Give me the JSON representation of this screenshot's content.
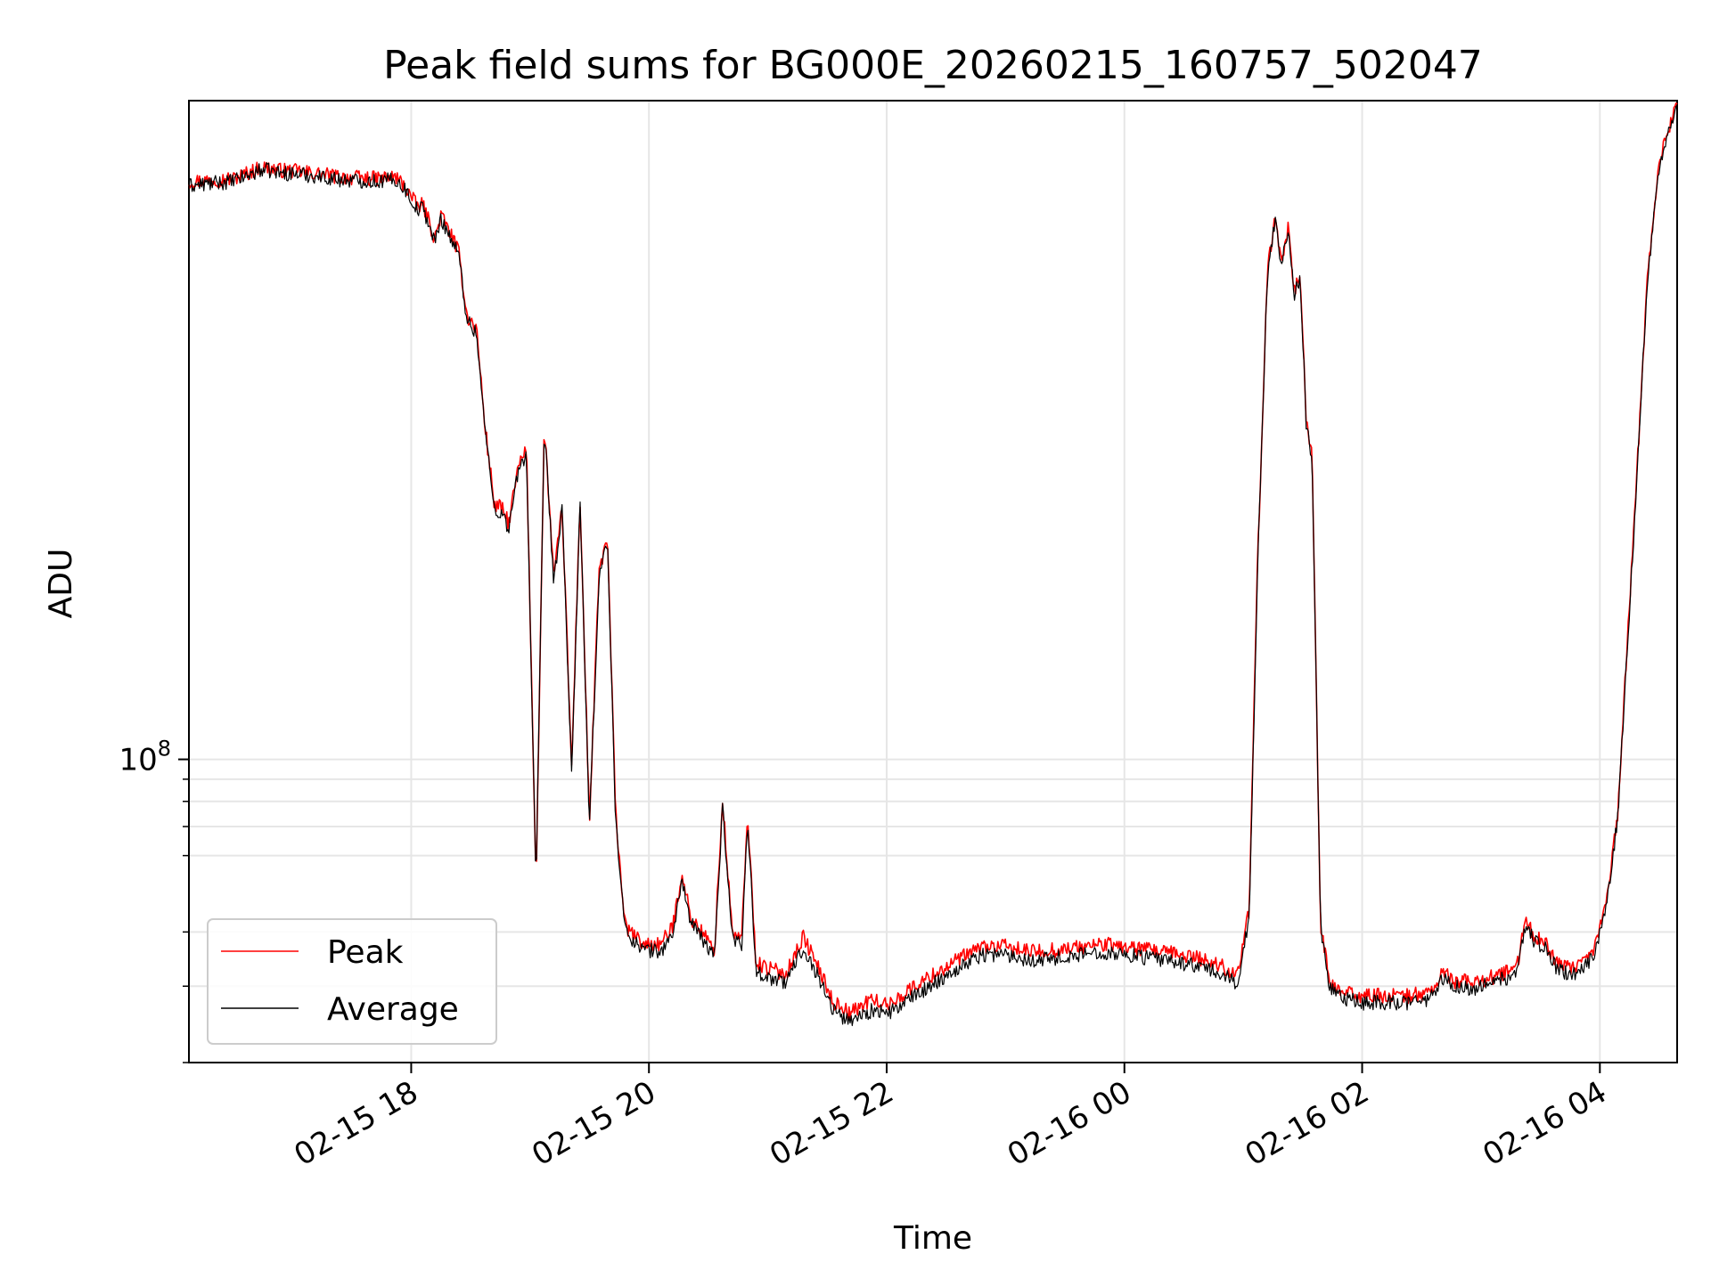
{
  "chart_data": {
    "type": "line",
    "title": "Peak field sums for BG000E_20260215_160757_502047",
    "xlabel": "Time",
    "ylabel": "ADU",
    "yscale": "log",
    "ylim": [
      20000000,
      3300000000
    ],
    "xlim_hours": [
      16.13,
      28.65
    ],
    "grid": true,
    "legend_location": "lower left",
    "x_ticks": [
      {
        "label": "02-15 18",
        "hour": 18
      },
      {
        "label": "02-15 20",
        "hour": 20
      },
      {
        "label": "02-15 22",
        "hour": 22
      },
      {
        "label": "02-16 00",
        "hour": 24
      },
      {
        "label": "02-16 02",
        "hour": 26
      },
      {
        "label": "02-16 04",
        "hour": 28
      }
    ],
    "y_major_ticks": [
      {
        "base": "10",
        "exp": "8",
        "value": 100000000
      }
    ],
    "y_minor_ticks": [
      20000000,
      30000000,
      40000000,
      60000000,
      70000000,
      80000000,
      90000000
    ],
    "series": [
      {
        "name": "Peak",
        "color": "#ff0000",
        "x_hours": [
          16.13,
          16.5,
          16.75,
          16.9,
          17.1,
          17.4,
          17.7,
          17.87,
          17.95,
          18.05,
          18.1,
          18.2,
          18.25,
          18.33,
          18.4,
          18.47,
          18.55,
          18.62,
          18.7,
          18.76,
          18.82,
          18.9,
          18.97,
          19.05,
          19.12,
          19.2,
          19.27,
          19.35,
          19.42,
          19.5,
          19.58,
          19.65,
          19.72,
          19.8,
          19.95,
          20.1,
          20.2,
          20.28,
          20.35,
          20.45,
          20.55,
          20.62,
          20.7,
          20.78,
          20.83,
          20.9,
          21.0,
          21.15,
          21.3,
          21.45,
          21.55,
          21.62,
          21.68,
          21.75,
          21.82,
          21.9,
          22.0,
          22.2,
          22.4,
          22.6,
          22.8,
          23.0,
          23.2,
          23.5,
          23.8,
          24.0,
          24.3,
          24.6,
          24.8,
          24.95,
          25.05,
          25.12,
          25.2,
          25.27,
          25.32,
          25.38,
          25.43,
          25.48,
          25.53,
          25.58,
          25.65,
          25.72,
          25.78,
          25.85,
          26.0,
          26.2,
          26.4,
          26.55,
          26.62,
          26.67,
          26.72,
          26.77,
          26.82,
          26.9,
          27.1,
          27.3,
          27.38,
          27.45,
          27.55,
          27.65,
          27.75,
          27.85,
          27.95,
          28.05,
          28.15,
          28.3,
          28.4,
          28.5,
          28.65
        ],
        "values": [
          2150000000,
          2180000000,
          2320000000,
          2280000000,
          2260000000,
          2200000000,
          2180000000,
          2200000000,
          2090000000,
          1880000000,
          1900000000,
          1580000000,
          1800000000,
          1630000000,
          1470000000,
          1050000000,
          980000000,
          590000000,
          385000000,
          380000000,
          350000000,
          470000000,
          520000000,
          52000000,
          590000000,
          260000000,
          380000000,
          95000000,
          400000000,
          72000000,
          270000000,
          325000000,
          75000000,
          41000000,
          37500000,
          37500000,
          41000000,
          55000000,
          43000000,
          40000000,
          36000000,
          80000000,
          40000000,
          38500000,
          75000000,
          34000000,
          33000000,
          32000000,
          39000000,
          32000000,
          27500000,
          27000000,
          26000000,
          26500000,
          27500000,
          28000000,
          27000000,
          29500000,
          32000000,
          34500000,
          37000000,
          37000000,
          36000000,
          36500000,
          37500000,
          37000000,
          36000000,
          35000000,
          33500000,
          32000000,
          45000000,
          280000000,
          1300000000,
          1800000000,
          1400000000,
          1700000000,
          1200000000,
          1300000000,
          600000000,
          500000000,
          42000000,
          31000000,
          29500000,
          29000000,
          28500000,
          28500000,
          28500000,
          29000000,
          30000000,
          32000000,
          32000000,
          30500000,
          31000000,
          30500000,
          31500000,
          33000000,
          43000000,
          39000000,
          37500000,
          33500000,
          33000000,
          33500000,
          36500000,
          46000000,
          75000000,
          400000000,
          1300000000,
          2400000000,
          3300000000
        ]
      },
      {
        "name": "Average",
        "color": "#000000",
        "x_hours": [
          16.13,
          16.5,
          16.75,
          16.9,
          17.1,
          17.4,
          17.7,
          17.87,
          17.95,
          18.05,
          18.1,
          18.2,
          18.25,
          18.33,
          18.4,
          18.47,
          18.55,
          18.62,
          18.7,
          18.76,
          18.82,
          18.9,
          18.97,
          19.05,
          19.12,
          19.2,
          19.27,
          19.35,
          19.42,
          19.5,
          19.58,
          19.65,
          19.72,
          19.8,
          19.95,
          20.1,
          20.2,
          20.28,
          20.35,
          20.45,
          20.55,
          20.62,
          20.7,
          20.78,
          20.83,
          20.9,
          21.0,
          21.15,
          21.3,
          21.45,
          21.55,
          21.62,
          21.68,
          21.75,
          21.82,
          21.9,
          22.0,
          22.2,
          22.4,
          22.6,
          22.8,
          23.0,
          23.2,
          23.5,
          23.8,
          24.0,
          24.3,
          24.6,
          24.8,
          24.95,
          25.05,
          25.12,
          25.2,
          25.27,
          25.32,
          25.38,
          25.43,
          25.48,
          25.53,
          25.58,
          25.65,
          25.72,
          25.78,
          25.85,
          26.0,
          26.2,
          26.4,
          26.55,
          26.62,
          26.67,
          26.72,
          26.77,
          26.82,
          26.9,
          27.1,
          27.3,
          27.38,
          27.45,
          27.55,
          27.65,
          27.75,
          27.85,
          27.95,
          28.05,
          28.15,
          28.3,
          28.4,
          28.5,
          28.65
        ],
        "values": [
          2100000000,
          2150000000,
          2290000000,
          2250000000,
          2230000000,
          2170000000,
          2150000000,
          2170000000,
          2060000000,
          1850000000,
          1870000000,
          1550000000,
          1770000000,
          1600000000,
          1450000000,
          1030000000,
          960000000,
          580000000,
          375000000,
          370000000,
          340000000,
          460000000,
          510000000,
          51000000,
          580000000,
          255000000,
          375000000,
          93000000,
          390000000,
          70000000,
          265000000,
          320000000,
          73000000,
          40000000,
          36500000,
          36000000,
          39500000,
          53000000,
          42000000,
          38500000,
          35000000,
          78000000,
          39000000,
          37500000,
          73000000,
          32500000,
          31500000,
          30500000,
          37000000,
          30500000,
          26500000,
          25500000,
          25000000,
          25500000,
          26000000,
          26500000,
          25800000,
          28000000,
          30500000,
          33000000,
          35500000,
          35500000,
          34500000,
          35000000,
          36000000,
          35500000,
          34500000,
          33500000,
          32000000,
          30500000,
          43000000,
          270000000,
          1280000000,
          1780000000,
          1380000000,
          1680000000,
          1180000000,
          1280000000,
          590000000,
          490000000,
          41000000,
          30000000,
          28500000,
          28000000,
          27500000,
          27500000,
          27500000,
          28000000,
          29000000,
          31000000,
          31000000,
          29500000,
          30000000,
          29500000,
          30500000,
          32000000,
          42000000,
          38000000,
          36500000,
          32500000,
          32000000,
          32500000,
          35500000,
          45000000,
          73000000,
          390000000,
          1280000000,
          2350000000,
          3250000000
        ]
      }
    ]
  }
}
